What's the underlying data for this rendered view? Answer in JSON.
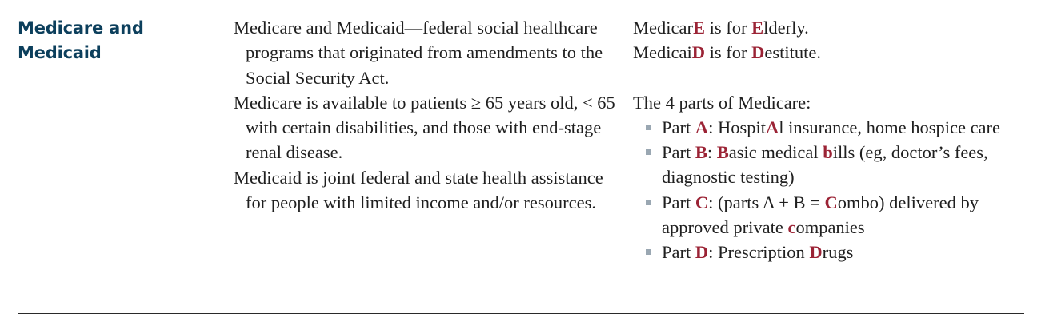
{
  "term": {
    "line1": "Medicare and",
    "line2": "Medicaid"
  },
  "definitions": [
    "Medicare and Medicaid—federal social healthcare programs that originated from amendments to the Social Security Act.",
    "Medicare is available to patients ≥ 65 years old, < 65 with certain disabilities, and those with end-stage renal disease.",
    "Medicaid is joint federal and state health assistance for people with limited income and/or resources."
  ],
  "mnemonic": {
    "medicare": {
      "prefix": "Medicar",
      "key": "E",
      "middle": " is for ",
      "key2": "E",
      "rest": "lderly."
    },
    "medicaid": {
      "prefix": "Medicai",
      "key": "D",
      "middle": " is for ",
      "key2": "D",
      "rest": "estitute."
    },
    "parts_intro": "The 4 parts of Medicare:",
    "parts": {
      "a": {
        "label": "Part ",
        "letter": "A",
        "t1": ": Hospit",
        "h1": "A",
        "t2": "l insurance, home hospice care"
      },
      "b": {
        "label": "Part ",
        "letter": "B",
        "t1": ": ",
        "h1": "B",
        "t2": "asic medical ",
        "h2": "b",
        "t3": "ills (eg, doctor’s fees, diagnostic testing)"
      },
      "c": {
        "label": "Part ",
        "letter": "C",
        "t1": ": (parts A + B = ",
        "h1": "C",
        "t2": "ombo) delivered by approved private ",
        "h2": "c",
        "t3": "ompanies"
      },
      "d": {
        "label": "Part ",
        "letter": "D",
        "t1": ": Prescription ",
        "h1": "D",
        "t2": "rugs"
      }
    }
  },
  "colors": {
    "term": "#0c3f5c",
    "highlight": "#9b2335",
    "bullet": "#9aa7b2",
    "text": "#1f1f1f"
  }
}
